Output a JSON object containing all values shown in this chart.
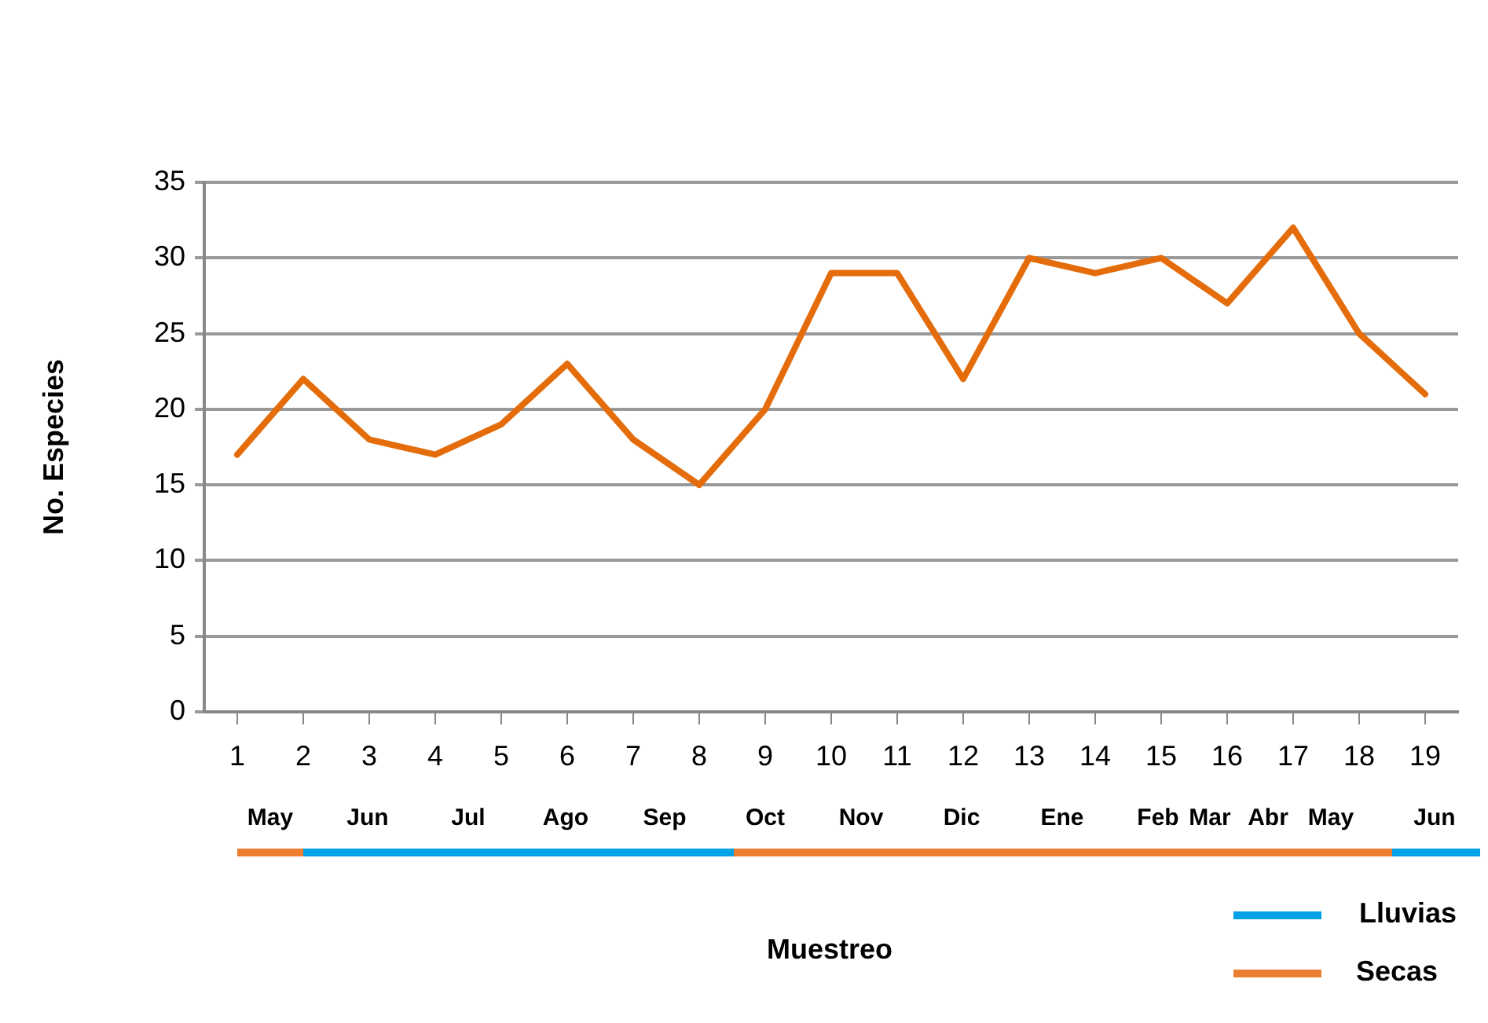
{
  "chart_data": {
    "type": "line",
    "ylabel": "No. Especies",
    "x": [
      1,
      2,
      3,
      4,
      5,
      6,
      7,
      8,
      9,
      10,
      11,
      12,
      13,
      14,
      15,
      16,
      17,
      18,
      19
    ],
    "series": [
      {
        "color": "#e46c0a",
        "values": [
          17,
          22,
          18,
          17,
          19,
          23,
          18,
          15,
          20,
          29,
          29,
          22,
          30,
          29,
          30,
          27,
          32,
          25,
          21
        ]
      }
    ],
    "xlim": [
      0.5,
      19.5
    ],
    "xticks": [
      1,
      2,
      3,
      4,
      5,
      6,
      7,
      8,
      9,
      10,
      11,
      12,
      13,
      14,
      15,
      16,
      17,
      18,
      19
    ],
    "ylim": [
      0,
      35
    ],
    "yticks": [
      0,
      5,
      10,
      15,
      20,
      25,
      30,
      35
    ],
    "grid": "y",
    "marker": "none",
    "line_style": "solid",
    "annotations": [
      "May",
      "Jun",
      "Jul",
      "Ago",
      "Sep",
      "Oct",
      "Nov",
      "Dic",
      "Ene",
      "Feb",
      "Mar",
      "Abr",
      "May",
      "Jun",
      "Lluvias",
      "Secas",
      "Muestreo"
    ]
  }
}
